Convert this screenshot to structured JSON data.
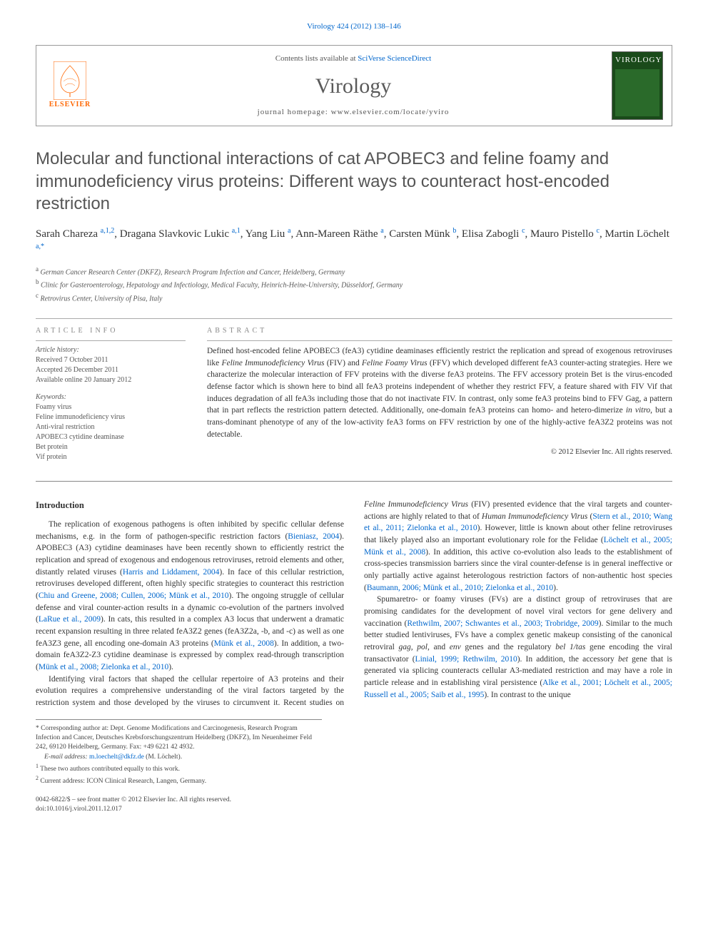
{
  "journal_ref": {
    "text": "Virology 424 (2012) 138–146",
    "href": "#"
  },
  "header": {
    "contents_prefix": "Contents lists available at ",
    "contents_link": "SciVerse ScienceDirect",
    "journal_name": "Virology",
    "homepage_prefix": "journal homepage: ",
    "homepage_url": "www.elsevier.com/locate/yviro",
    "elsevier_brand": "ELSEVIER",
    "cover_label": "VIROLOGY"
  },
  "title": "Molecular and functional interactions of cat APOBEC3 and feline foamy and immunodeficiency virus proteins: Different ways to counteract host-encoded restriction",
  "authors": [
    {
      "name": "Sarah Chareza",
      "marks": "a,1,2"
    },
    {
      "name": "Dragana Slavkovic Lukic",
      "marks": "a,1"
    },
    {
      "name": "Yang Liu",
      "marks": "a"
    },
    {
      "name": "Ann-Mareen Räthe",
      "marks": "a"
    },
    {
      "name": "Carsten Münk",
      "marks": "b"
    },
    {
      "name": "Elisa Zabogli",
      "marks": "c"
    },
    {
      "name": "Mauro Pistello",
      "marks": "c"
    },
    {
      "name": "Martin Löchelt",
      "marks": "a,*"
    }
  ],
  "affiliations": [
    {
      "mark": "a",
      "text": "German Cancer Research Center (DKFZ), Research Program Infection and Cancer, Heidelberg, Germany"
    },
    {
      "mark": "b",
      "text": "Clinic for Gasteroenterology, Hepatology and Infectiology, Medical Faculty, Heinrich-Heine-University, Düsseldorf, Germany"
    },
    {
      "mark": "c",
      "text": "Retrovirus Center, University of Pisa, Italy"
    }
  ],
  "article_info": {
    "label": "ARTICLE INFO",
    "history_label": "Article history:",
    "history": [
      "Received 7 October 2011",
      "Accepted 26 December 2011",
      "Available online 20 January 2012"
    ],
    "keywords_label": "Keywords:",
    "keywords": [
      "Foamy virus",
      "Feline immunodeficiency virus",
      "Anti-viral restriction",
      "APOBEC3 cytidine deaminase",
      "Bet protein",
      "Vif protein"
    ]
  },
  "abstract": {
    "label": "ABSTRACT",
    "text_parts": [
      "Defined host-encoded feline APOBEC3 (feA3) cytidine deaminases efficiently restrict the replication and spread of exogenous retroviruses like ",
      "Feline Immunodeficiency Virus",
      " (FIV) and ",
      "Feline Foamy Virus",
      " (FFV) which developed different feA3 counter-acting strategies. Here we characterize the molecular interaction of FFV proteins with the diverse feA3 proteins. The FFV accessory protein Bet is the virus-encoded defense factor which is shown here to bind all feA3 proteins independent of whether they restrict FFV, a feature shared with FIV Vif that induces degradation of all feA3s including those that do not inactivate FIV. In contrast, only some feA3 proteins bind to FFV Gag, a pattern that in part reflects the restriction pattern detected. Additionally, one-domain feA3 proteins can homo- and hetero-dimerize ",
      "in vitro",
      ", but a trans-dominant phenotype of any of the low-activity feA3 forms on FFV restriction by one of the highly-active feA3Z2 proteins was not detectable."
    ],
    "copyright": "© 2012 Elsevier Inc. All rights reserved."
  },
  "intro": {
    "heading": "Introduction",
    "p1": {
      "t1": "The replication of exogenous pathogens is often inhibited by specific cellular defense mechanisms, e.g. in the form of pathogen-specific restriction factors (",
      "l1": "Bieniasz, 2004",
      "t2": "). APOBEC3 (A3) cytidine deaminases have been recently shown to efficiently restrict the replication and spread of exogenous and endogenous retroviruses, retroid elements and other, distantly related viruses (",
      "l2": "Harris and Liddament, 2004",
      "t3": "). In face of this cellular restriction, retroviruses developed different, often highly specific strategies to counteract this restriction (",
      "l3": "Chiu and Greene, 2008; Cullen, 2006; Münk et al., 2010",
      "t4": "). The ongoing struggle of cellular defense and viral counter-action results in a dynamic co-evolution of the partners involved (",
      "l4": "LaRue et al., 2009",
      "t5": "). In cats, this resulted in a complex A3 locus that underwent a dramatic recent expansion resulting in three related feA3Z2 genes (feA3Z2a, -b, and -c) as well as one feA3Z3 gene, all encoding one-domain A3 proteins (",
      "l5": "Münk et al., 2008",
      "t6": "). In addition, a two-domain feA3Z2-Z3 cytidine deaminase is expressed by complex read-through transcription (",
      "l6": "Münk et al., 2008; Zielonka et al., 2010",
      "t7": ")."
    },
    "p2": {
      "t1": "Identifying viral factors that shaped the cellular repertoire of A3 proteins and their evolution requires a comprehensive understanding of the viral factors targeted by the restriction system and those developed by the viruses to circumvent it. Recent studies on ",
      "e1": "Feline Immunodeficiency Virus",
      "t2": " (FIV) presented evidence that the viral targets and counter-actions are highly related to that of ",
      "e2": "Human Immunodeficiency Virus",
      "t3": " (",
      "l1": "Stern et al., 2010; Wang et al., 2011; Zielonka et al., 2010",
      "t4": "). However, little is known about other feline retroviruses that likely played also an important evolutionary role for the Felidae (",
      "l2": "Löchelt et al., 2005; Münk et al., 2008",
      "t5": "). In addition, this active co-evolution also leads to the establishment of cross-species transmission barriers since the viral counter-defense is in general ineffective or only partially active against heterologous restriction factors of non-authentic host species (",
      "l3": "Baumann, 2006; Münk et al., 2010; Zielonka et al., 2010",
      "t6": ")."
    },
    "p3": {
      "t1": "Spumaretro- or foamy viruses (FVs) are a distinct group of retroviruses that are promising candidates for the development of novel viral vectors for gene delivery and vaccination (",
      "l1": "Rethwilm, 2007; Schwantes et al., 2003; Trobridge, 2009",
      "t2": "). Similar to the much better studied lentiviruses, FVs have a complex genetic makeup consisting of the canonical retroviral ",
      "e1": "gag, pol",
      "t3": ", and ",
      "e2": "env",
      "t4": " genes and the regulatory ",
      "e3": "bel 1/tas",
      "t5": " gene encoding the viral transactivator (",
      "l2": "Linial, 1999; Rethwilm, 2010",
      "t6": "). In addition, the accessory ",
      "e4": "bet",
      "t7": " gene that is generated via splicing counteracts cellular A3-mediated restriction and may have a role in particle release and in establishing viral persistence (",
      "l3": "Alke et al., 2001; Löchelt et al., 2005; Russell et al., 2005; Saib et al., 1995",
      "t8": "). In contrast to the unique"
    }
  },
  "footnotes": {
    "corr_mark": "*",
    "corr": "Corresponding author at: Dept. Genome Modifications and Carcinogenesis, Research Program Infection and Cancer, Deutsches Krebsforschungszentrum Heidelberg (DKFZ), Im Neuenheimer Feld 242, 69120 Heidelberg, Germany. Fax: +49 6221 42 4932.",
    "email_label": "E-mail address:",
    "email": "m.loechelt@dkfz.de",
    "email_person": "(M. Löchelt).",
    "fn1_mark": "1",
    "fn1": "These two authors contributed equally to this work.",
    "fn2_mark": "2",
    "fn2": "Current address: ICON Clinical Research, Langen, Germany."
  },
  "footer": {
    "line1": "0042-6822/$ – see front matter © 2012 Elsevier Inc. All rights reserved.",
    "line2": "doi:10.1016/j.virol.2011.12.017"
  },
  "colors": {
    "link": "#0066cc",
    "title_gray": "#555555",
    "accent_orange": "#ff6600",
    "cover_bg": "#1a4a1a"
  }
}
